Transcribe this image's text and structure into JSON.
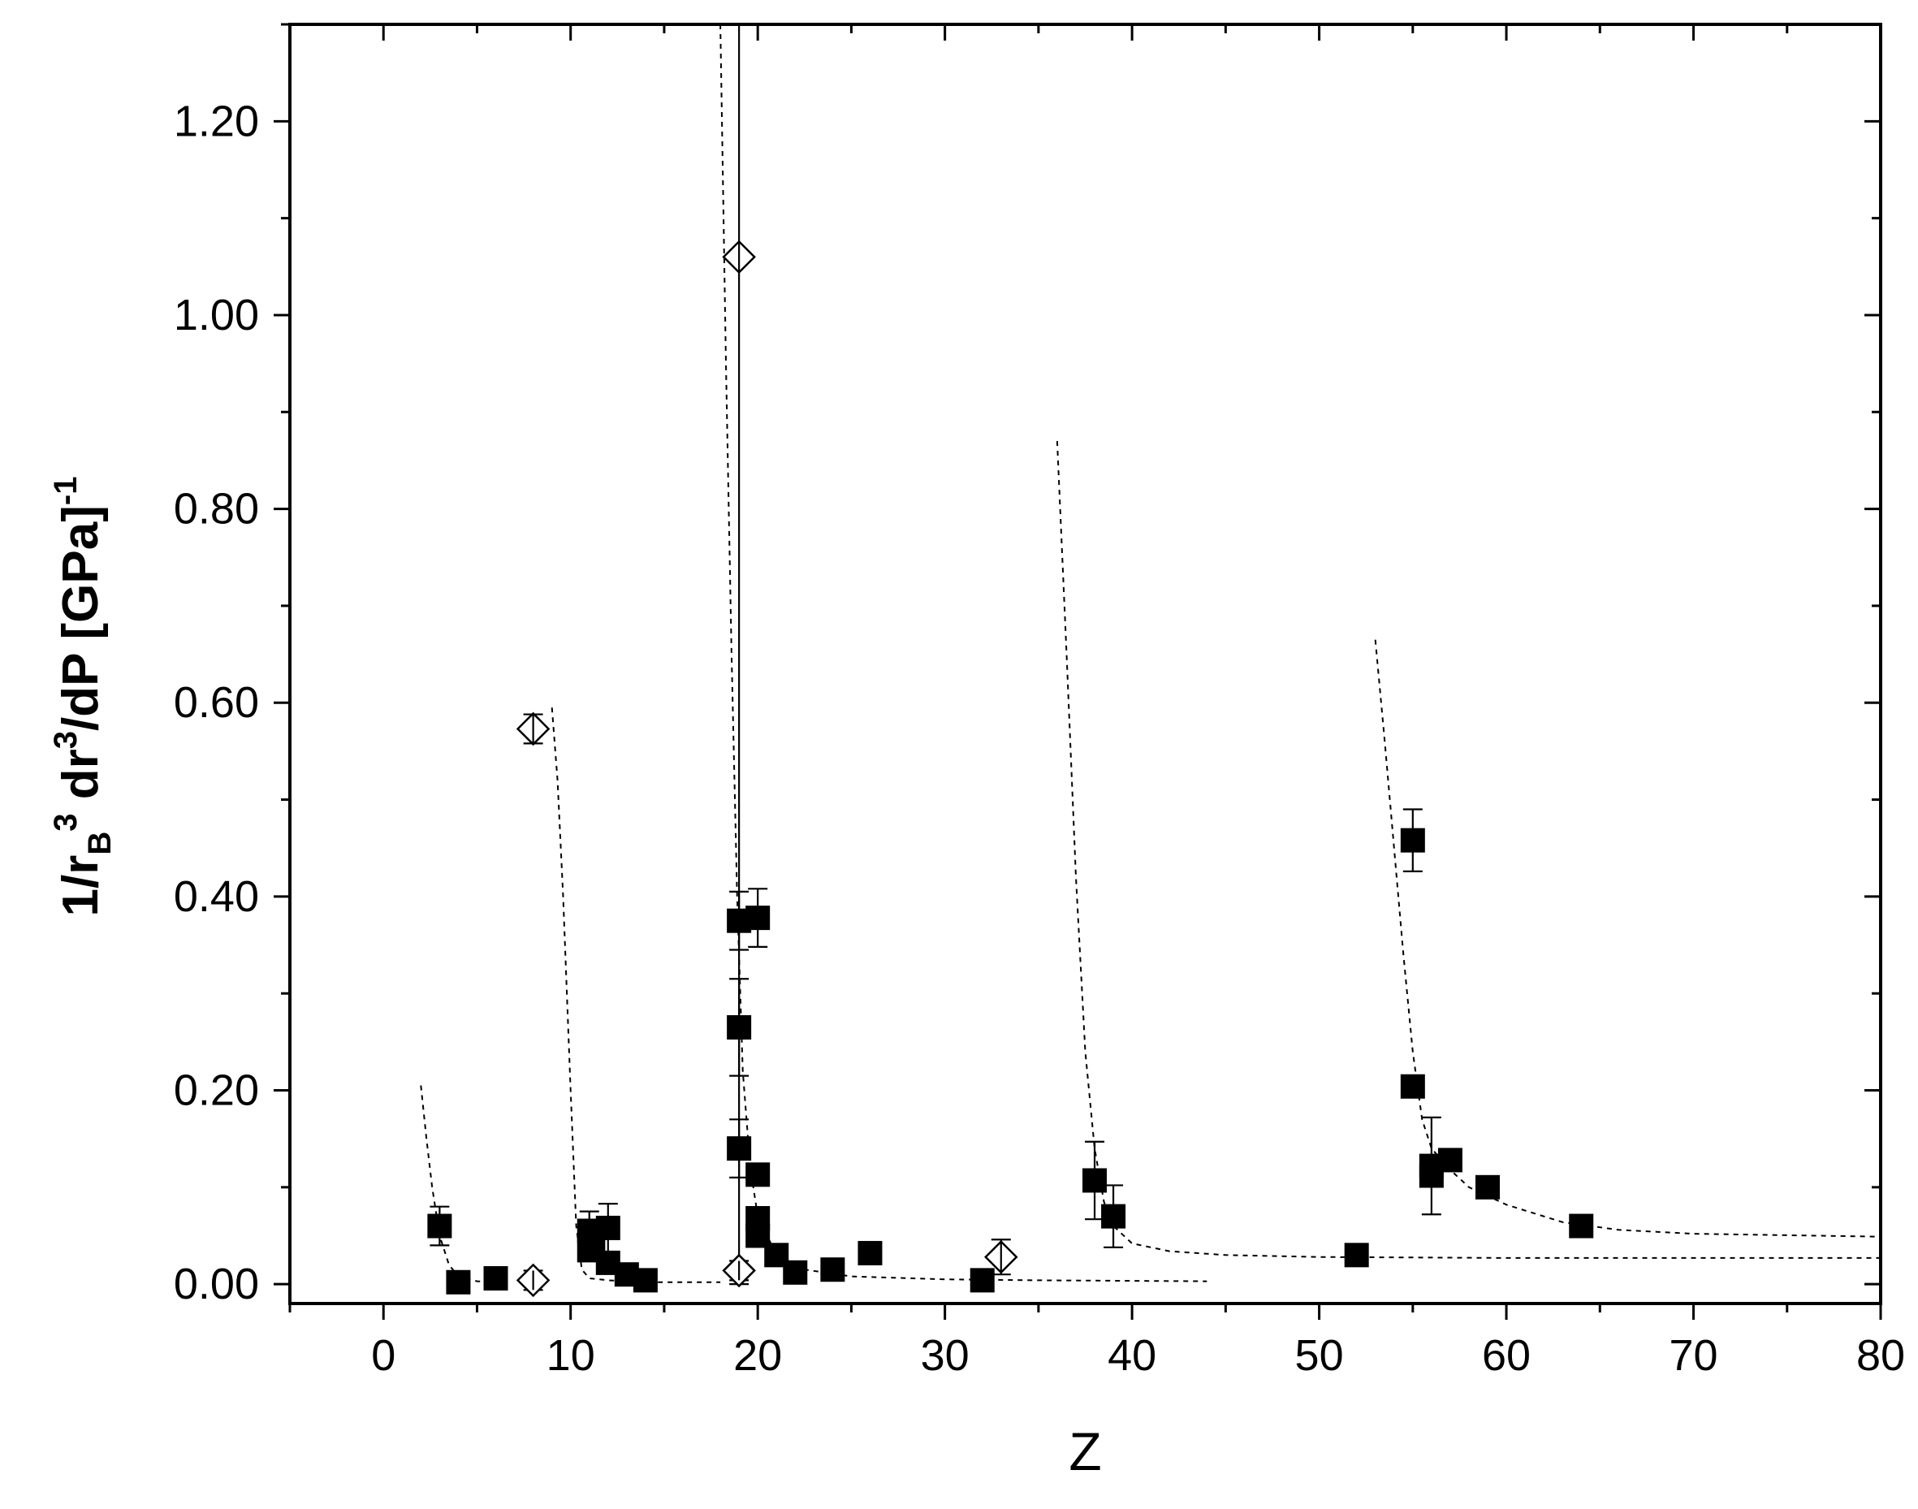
{
  "chart_data": {
    "type": "scatter",
    "xlabel": "Z",
    "ylabel": {
      "prefix": "1/r",
      "subscript": "B",
      "sup1": "3",
      "middle": " dr",
      "sup2": "3",
      "suffix": "/dP [GPa]",
      "sup3": "-1"
    },
    "xlim": [
      -5,
      80
    ],
    "ylim": [
      -0.02,
      1.3
    ],
    "x_ticks": [
      0,
      10,
      20,
      30,
      40,
      50,
      60,
      70,
      80
    ],
    "x_tick_labels": [
      "0",
      "10",
      "20",
      "30",
      "40",
      "50",
      "60",
      "70",
      "80"
    ],
    "y_ticks": [
      0.0,
      0.2,
      0.4,
      0.6,
      0.8,
      1.0,
      1.2
    ],
    "y_tick_labels": [
      "0.00",
      "0.20",
      "0.40",
      "0.60",
      "0.80",
      "1.00",
      "1.20"
    ],
    "grid": false,
    "series": [
      {
        "marker": "filled-square",
        "color": "#000000",
        "points": [
          {
            "x": 3,
            "y": 0.06,
            "err": 0.02
          },
          {
            "x": 4,
            "y": 0.002
          },
          {
            "x": 6,
            "y": 0.006
          },
          {
            "x": 11,
            "y": 0.055,
            "err": 0.02
          },
          {
            "x": 11,
            "y": 0.035
          },
          {
            "x": 11.2,
            "y": 0.045
          },
          {
            "x": 12,
            "y": 0.058,
            "err": 0.025
          },
          {
            "x": 12,
            "y": 0.022
          },
          {
            "x": 13,
            "y": 0.01
          },
          {
            "x": 14,
            "y": 0.004
          },
          {
            "x": 19,
            "y": 0.375,
            "err": 0.03
          },
          {
            "x": 19,
            "y": 0.265,
            "err": 0.05
          },
          {
            "x": 19,
            "y": 0.14,
            "err": 0.03
          },
          {
            "x": 20,
            "y": 0.378,
            "err": 0.03
          },
          {
            "x": 20,
            "y": 0.113
          },
          {
            "x": 20,
            "y": 0.068
          },
          {
            "x": 20,
            "y": 0.05
          },
          {
            "x": 21,
            "y": 0.03
          },
          {
            "x": 22,
            "y": 0.012
          },
          {
            "x": 24,
            "y": 0.015
          },
          {
            "x": 26,
            "y": 0.032
          },
          {
            "x": 32,
            "y": 0.004
          },
          {
            "x": 38,
            "y": 0.107,
            "err": 0.04
          },
          {
            "x": 39,
            "y": 0.07,
            "err": 0.032
          },
          {
            "x": 52,
            "y": 0.03
          },
          {
            "x": 55,
            "y": 0.458,
            "err": 0.032
          },
          {
            "x": 55,
            "y": 0.204
          },
          {
            "x": 56,
            "y": 0.122,
            "err": 0.05
          },
          {
            "x": 56,
            "y": 0.112
          },
          {
            "x": 57,
            "y": 0.128
          },
          {
            "x": 59,
            "y": 0.1
          },
          {
            "x": 64,
            "y": 0.06
          }
        ]
      },
      {
        "marker": "open-diamond",
        "color": "#000000",
        "points": [
          {
            "x": 8,
            "y": 0.573,
            "err": 0.015
          },
          {
            "x": 8,
            "y": 0.004,
            "err": 0.01
          },
          {
            "x": 19,
            "y": 1.06,
            "err": 1.06
          },
          {
            "x": 19,
            "y": 0.014,
            "err": 0.01
          },
          {
            "x": 33,
            "y": 0.028,
            "err": 0.018
          }
        ]
      }
    ],
    "guide_curves": [
      {
        "x": [
          2.0,
          2.3,
          2.6,
          3.0,
          3.5,
          4.0,
          5.0,
          6.5
        ],
        "y": [
          0.205,
          0.15,
          0.1,
          0.05,
          0.02,
          0.008,
          0.003,
          0.002
        ]
      },
      {
        "x": [
          9.0,
          9.3,
          9.6,
          10.0,
          10.3,
          10.6,
          11.0,
          12.0,
          14.0,
          18.0
        ],
        "y": [
          0.595,
          0.52,
          0.4,
          0.2,
          0.06,
          0.015,
          0.006,
          0.004,
          0.002,
          0.002
        ]
      },
      {
        "x": [
          18.0,
          18.3,
          18.6,
          18.9,
          19.2,
          19.6,
          20.0,
          21.0,
          22.5,
          25.0,
          30.0,
          35.0,
          44.0
        ],
        "y": [
          1.3,
          0.95,
          0.65,
          0.4,
          0.22,
          0.12,
          0.07,
          0.03,
          0.015,
          0.008,
          0.005,
          0.004,
          0.003
        ]
      },
      {
        "x": [
          36.0,
          36.5,
          37.0,
          37.5,
          38.0,
          38.5,
          39.0,
          40.0,
          42.0,
          45.0,
          50.0,
          60.0,
          80.0
        ],
        "y": [
          0.87,
          0.65,
          0.42,
          0.24,
          0.14,
          0.085,
          0.06,
          0.042,
          0.034,
          0.03,
          0.028,
          0.027,
          0.027
        ]
      },
      {
        "x": [
          53.0,
          53.5,
          54.0,
          54.5,
          55.0,
          55.5,
          56.0,
          57.0,
          58.0,
          60.0,
          63.0,
          66.0,
          70.0,
          80.0
        ],
        "y": [
          0.665,
          0.56,
          0.45,
          0.34,
          0.24,
          0.17,
          0.14,
          0.118,
          0.1,
          0.082,
          0.064,
          0.056,
          0.052,
          0.049
        ]
      }
    ]
  }
}
